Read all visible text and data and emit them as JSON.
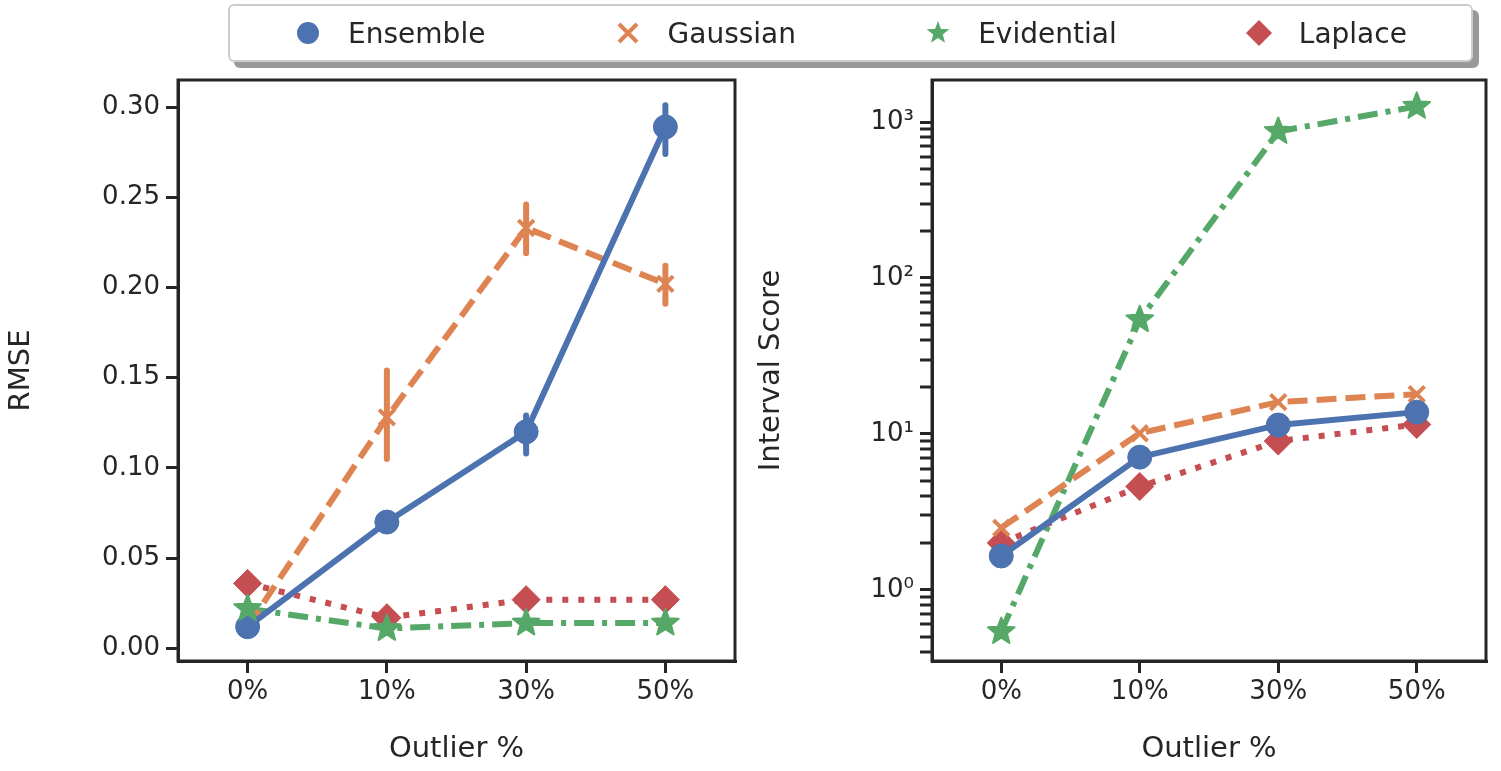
{
  "chart_data": [
    {
      "type": "line",
      "categories": [
        "0%",
        "10%",
        "30%",
        "50%"
      ],
      "xlabel": "Outlier %",
      "ylabel": "RMSE",
      "ylim": [
        -0.007,
        0.315
      ],
      "yticks": [
        {
          "value": 0,
          "label": "0.00"
        },
        {
          "value": 0.05,
          "label": "0.05"
        },
        {
          "value": 0.1,
          "label": "0.10"
        },
        {
          "value": 0.15,
          "label": "0.15"
        },
        {
          "value": 0.2,
          "label": "0.20"
        },
        {
          "value": 0.25,
          "label": "0.25"
        },
        {
          "value": 0.3,
          "label": "0.30"
        }
      ],
      "legend": "top",
      "series": [
        {
          "name": "Ensemble",
          "color": "#4c72b0",
          "marker": "circle",
          "line_style": "solid",
          "values": [
            0.012,
            0.07,
            0.12,
            0.289
          ],
          "errors": [
            null,
            null,
            [
              0.108,
              0.129
            ],
            [
              0.274,
              0.301
            ]
          ]
        },
        {
          "name": "Gaussian",
          "color": "#dd8452",
          "marker": "cross",
          "line_style": "dashed",
          "values": [
            0.012,
            0.128,
            0.233,
            0.202
          ],
          "errors": [
            null,
            [
              0.105,
              0.154
            ],
            [
              0.219,
              0.246
            ],
            [
              0.191,
              0.212
            ]
          ]
        },
        {
          "name": "Evidential",
          "color": "#55a868",
          "marker": "star",
          "line_style": "dashdot",
          "values": [
            0.022,
            0.011,
            0.014,
            0.014
          ]
        },
        {
          "name": "Laplace",
          "color": "#c44e52",
          "marker": "diamond",
          "line_style": "dotted",
          "values": [
            0.036,
            0.017,
            0.027,
            0.027
          ]
        }
      ]
    },
    {
      "type": "line",
      "categories": [
        "0%",
        "10%",
        "30%",
        "50%"
      ],
      "xlabel": "Outlier %",
      "ylabel": "Interval Score",
      "log": "y",
      "ylim": [
        0.35,
        1860
      ],
      "yticks": [
        {
          "value": 0.4,
          "label": null
        },
        {
          "value": 0.5,
          "label": null
        },
        {
          "value": 0.6,
          "label": null
        },
        {
          "value": 0.7,
          "label": null
        },
        {
          "value": 0.8,
          "label": null
        },
        {
          "value": 0.9,
          "label": null
        },
        {
          "value": 1,
          "label": "10⁰"
        },
        {
          "value": 2,
          "label": null
        },
        {
          "value": 3,
          "label": null
        },
        {
          "value": 4,
          "label": null
        },
        {
          "value": 5,
          "label": null
        },
        {
          "value": 6,
          "label": null
        },
        {
          "value": 7,
          "label": null
        },
        {
          "value": 8,
          "label": null
        },
        {
          "value": 9,
          "label": null
        },
        {
          "value": 10,
          "label": "10¹"
        },
        {
          "value": 20,
          "label": null
        },
        {
          "value": 30,
          "label": null
        },
        {
          "value": 40,
          "label": null
        },
        {
          "value": 50,
          "label": null
        },
        {
          "value": 60,
          "label": null
        },
        {
          "value": 70,
          "label": null
        },
        {
          "value": 80,
          "label": null
        },
        {
          "value": 90,
          "label": null
        },
        {
          "value": 100,
          "label": "10²"
        },
        {
          "value": 200,
          "label": null
        },
        {
          "value": 300,
          "label": null
        },
        {
          "value": 400,
          "label": null
        },
        {
          "value": 500,
          "label": null
        },
        {
          "value": 600,
          "label": null
        },
        {
          "value": 700,
          "label": null
        },
        {
          "value": 800,
          "label": null
        },
        {
          "value": 900,
          "label": null
        },
        {
          "value": 1000,
          "label": "10³"
        }
      ],
      "series": [
        {
          "color": "#4c72b0",
          "marker": "circle",
          "line_style": "solid",
          "values": [
            1.65,
            7.1,
            11.4,
            13.8
          ]
        },
        {
          "color": "#dd8452",
          "marker": "cross",
          "line_style": "dashed",
          "values": [
            2.5,
            10.1,
            16,
            18
          ]
        },
        {
          "color": "#55a868",
          "marker": "star",
          "line_style": "dashdot",
          "values": [
            0.54,
            54,
            870,
            1260
          ]
        },
        {
          "color": "#c44e52",
          "marker": "diamond",
          "line_style": "dotted",
          "values": [
            2.0,
            4.6,
            9.0,
            11.5
          ]
        }
      ]
    }
  ]
}
